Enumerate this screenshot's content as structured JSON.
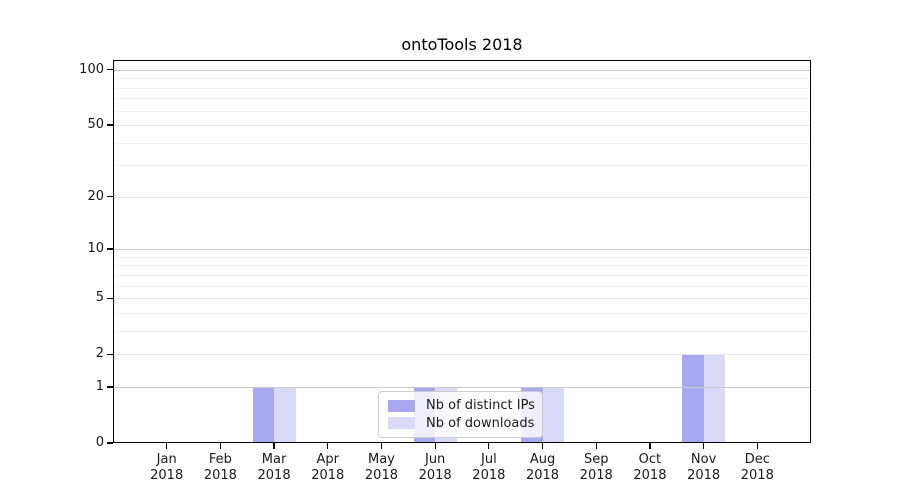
{
  "chart_data": {
    "type": "bar",
    "title": "ontoTools 2018",
    "categories": [
      "Jan",
      "Feb",
      "Mar",
      "Apr",
      "May",
      "Jun",
      "Jul",
      "Aug",
      "Sep",
      "Oct",
      "Nov",
      "Dec"
    ],
    "x_tick_year": "2018",
    "series": [
      {
        "name": "Nb of distinct IPs",
        "color": "#a8a8f2",
        "values": [
          0,
          0,
          1,
          0,
          0,
          1,
          0,
          1,
          0,
          0,
          2,
          0
        ]
      },
      {
        "name": "Nb of downloads",
        "color": "#d9d9f8",
        "values": [
          0,
          0,
          1,
          0,
          0,
          1,
          0,
          1,
          0,
          0,
          2,
          0
        ]
      }
    ],
    "y_major_ticks": [
      0,
      1,
      2,
      5,
      10,
      20,
      50,
      100
    ],
    "y_minor_ticks": [
      3,
      4,
      6,
      7,
      8,
      9,
      30,
      40,
      60,
      70,
      80,
      90
    ],
    "y_decade_ticks": [
      1,
      10,
      100
    ],
    "scale": "log1p",
    "ylim": [
      0,
      113
    ],
    "xlabel": "",
    "ylabel": "",
    "grid": true,
    "legend_position": "lower center",
    "colors": {
      "decade_grid": "#c9c9c9",
      "major_grid": "#e7e7e7",
      "minor_grid": "#f2f2f2",
      "axis": "#000000",
      "text": "#1a1a1a",
      "background": "#ffffff"
    }
  }
}
